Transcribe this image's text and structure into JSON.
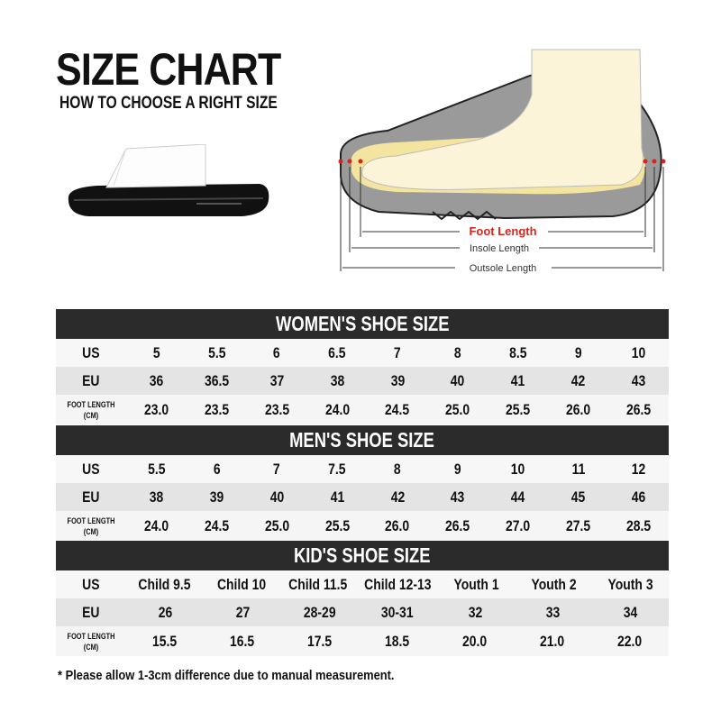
{
  "header": {
    "title": "SIZE CHART",
    "subtitle": "HOW TO CHOOSE A RIGHT SIZE"
  },
  "diagram": {
    "foot_length": "Foot Length",
    "insole_length": "Insole Length",
    "outsole_length": "Outsole Length",
    "accent_color": "#d9231d"
  },
  "colors": {
    "header_bg": "#2b2b2b",
    "eu_row_bg": "#e4e4e4"
  },
  "tables": [
    {
      "title": "WOMEN'S SHOE SIZE",
      "rows": [
        {
          "label": "US",
          "values": [
            "5",
            "5.5",
            "6",
            "6.5",
            "7",
            "8",
            "8.5",
            "9",
            "10"
          ]
        },
        {
          "label": "EU",
          "values": [
            "36",
            "36.5",
            "37",
            "38",
            "39",
            "40",
            "41",
            "42",
            "43"
          ]
        },
        {
          "label": "FOOT LENGTH (CM)",
          "values": [
            "23.0",
            "23.5",
            "23.5",
            "24.0",
            "24.5",
            "25.0",
            "25.5",
            "26.0",
            "26.5"
          ]
        }
      ]
    },
    {
      "title": "MEN'S SHOE SIZE",
      "rows": [
        {
          "label": "US",
          "values": [
            "5.5",
            "6",
            "7",
            "7.5",
            "8",
            "9",
            "10",
            "11",
            "12"
          ]
        },
        {
          "label": "EU",
          "values": [
            "38",
            "39",
            "40",
            "41",
            "42",
            "43",
            "44",
            "45",
            "46"
          ]
        },
        {
          "label": "FOOT LENGTH (CM)",
          "values": [
            "24.0",
            "24.5",
            "25.0",
            "25.5",
            "26.0",
            "26.5",
            "27.0",
            "27.5",
            "28.5"
          ]
        }
      ]
    },
    {
      "title": "KID'S SHOE SIZE",
      "rows": [
        {
          "label": "US",
          "values": [
            "Child 9.5",
            "Child 10",
            "Child 11.5",
            "Child 12-13",
            "Youth 1",
            "Youth 2",
            "Youth 3"
          ]
        },
        {
          "label": "EU",
          "values": [
            "26",
            "27",
            "28-29",
            "30-31",
            "32",
            "33",
            "34"
          ]
        },
        {
          "label": "FOOT LENGTH (CM)",
          "values": [
            "15.5",
            "16.5",
            "17.5",
            "18.5",
            "20.0",
            "21.0",
            "22.0"
          ]
        }
      ]
    }
  ],
  "footnote": "* Please allow 1-3cm difference due to manual measurement."
}
